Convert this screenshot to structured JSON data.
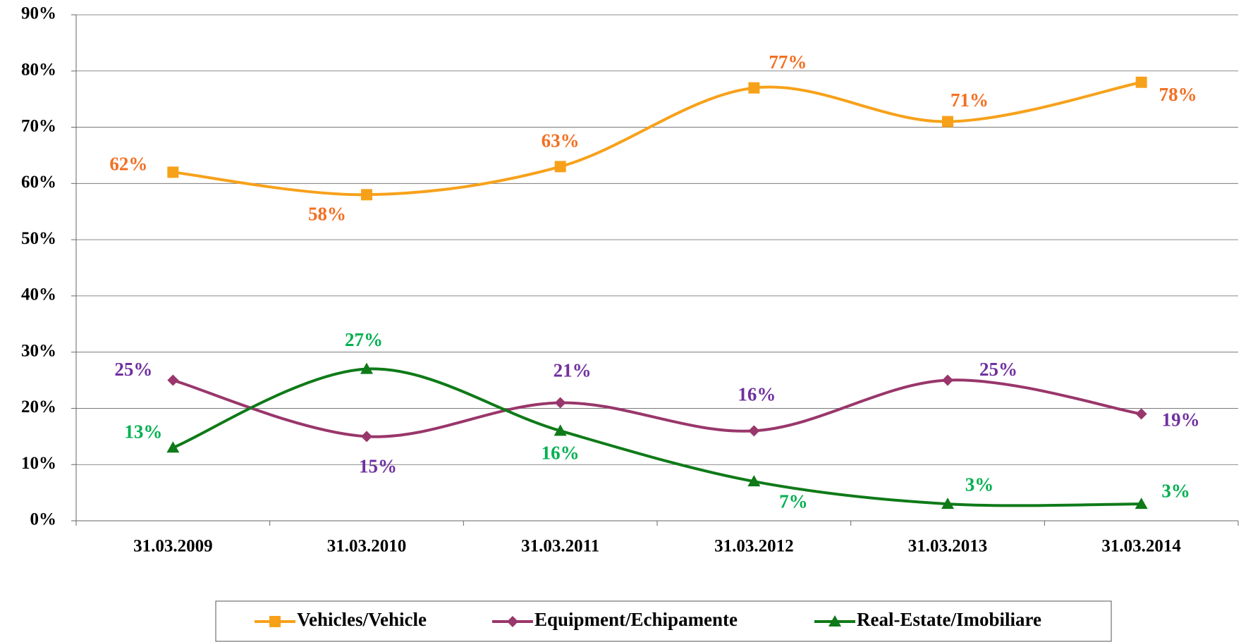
{
  "chart_data": {
    "type": "line",
    "categories": [
      "31.03.2009",
      "31.03.2010",
      "31.03.2011",
      "31.03.2012",
      "31.03.2013",
      "31.03.2014"
    ],
    "series": [
      {
        "name": "Vehicles/Vehicle",
        "color": "#f7a11a",
        "label_color": "#f36f21",
        "marker": "square",
        "values": [
          62,
          58,
          63,
          77,
          71,
          78
        ],
        "value_labels": [
          "62%",
          "58%",
          "63%",
          "77%",
          "71%",
          "78%"
        ]
      },
      {
        "name": "Equipment/Echipamente",
        "color": "#99366b",
        "label_color": "#7030a0",
        "marker": "diamond",
        "values": [
          25,
          15,
          21,
          16,
          25,
          19
        ],
        "value_labels": [
          "25%",
          "15%",
          "21%",
          "16%",
          "25%",
          "19%"
        ]
      },
      {
        "name": "Real-Estate/Imobiliare",
        "color": "#0e7a18",
        "label_color": "#00b050",
        "marker": "triangle",
        "values": [
          13,
          27,
          16,
          7,
          3,
          3
        ],
        "value_labels": [
          "13%",
          "27%",
          "16%",
          "7%",
          "3%",
          "3%"
        ]
      }
    ],
    "ylim": [
      0,
      90
    ],
    "yticks": [
      {
        "value": 0,
        "label": "0%"
      },
      {
        "value": 10,
        "label": "10%"
      },
      {
        "value": 20,
        "label": "20%"
      },
      {
        "value": 30,
        "label": "30%"
      },
      {
        "value": 40,
        "label": "40%"
      },
      {
        "value": 50,
        "label": "50%"
      },
      {
        "value": 60,
        "label": "60%"
      },
      {
        "value": 70,
        "label": "70%"
      },
      {
        "value": 80,
        "label": "80%"
      },
      {
        "value": 90,
        "label": "90%"
      }
    ],
    "grid": true,
    "smooth": true,
    "legend": "bottom"
  }
}
